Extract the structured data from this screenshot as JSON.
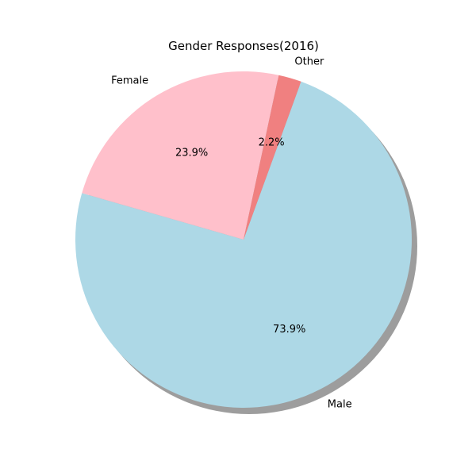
{
  "chart_data": {
    "type": "pie",
    "title": "Gender Responses(2016)",
    "slices": [
      {
        "label": "Male",
        "value": 73.9,
        "pct_label": "73.9%",
        "color": "#add8e6"
      },
      {
        "label": "Female",
        "value": 23.9,
        "pct_label": "23.9%",
        "color": "#ffc0cb"
      },
      {
        "label": "Other",
        "value": 2.2,
        "pct_label": "2.2%",
        "color": "#f08080"
      }
    ],
    "shadow": true,
    "legend": "none"
  }
}
